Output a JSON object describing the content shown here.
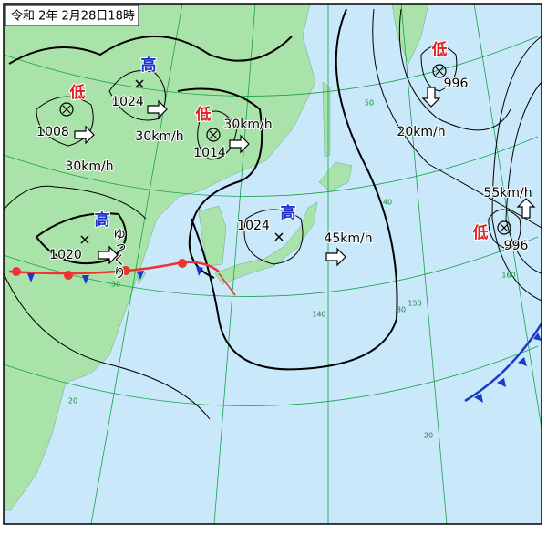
{
  "header": {
    "title": "令和 2年 2月28日18時"
  },
  "systems": [
    {
      "kind": "高",
      "pressure": 1024,
      "speed": "30km/h"
    },
    {
      "kind": "低",
      "pressure": 1008,
      "speed": "30km/h"
    },
    {
      "kind": "低",
      "pressure": 1014,
      "speed": "30km/h"
    },
    {
      "kind": "高",
      "pressure": 1020,
      "speed": "ゆっくり"
    },
    {
      "kind": "高",
      "pressure": 1024,
      "speed": "45km/h"
    },
    {
      "kind": "低",
      "pressure": 996,
      "speed": "20km/h"
    },
    {
      "kind": "低",
      "pressure": 996,
      "speed": "55km/h"
    }
  ],
  "grid_labels": [
    50,
    40,
    30,
    20,
    140,
    150,
    160,
    30,
    20
  ]
}
